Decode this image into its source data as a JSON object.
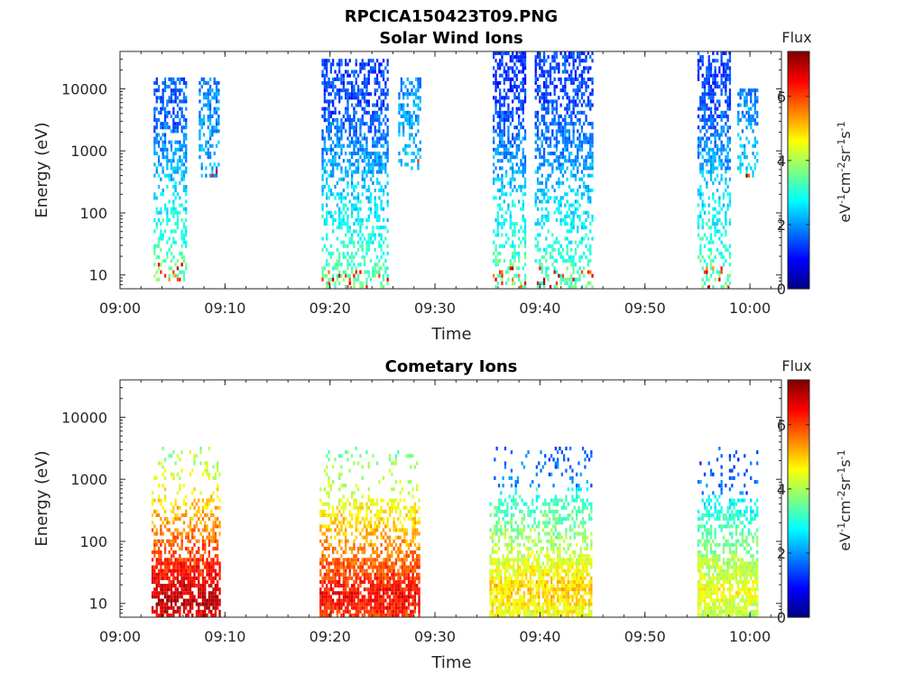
{
  "figure": {
    "title": "RPCICA150423T09.PNG"
  },
  "colorbar": {
    "label": "Flux",
    "unit_base": "eV",
    "unit_parts": [
      {
        "text": "eV",
        "sup": false
      },
      {
        "text": "-1",
        "sup": true
      },
      {
        "text": "cm",
        "sup": false
      },
      {
        "text": "-2",
        "sup": true
      },
      {
        "text": "sr",
        "sup": false
      },
      {
        "text": "-1",
        "sup": true
      },
      {
        "text": "s",
        "sup": false
      },
      {
        "text": "-1",
        "sup": true
      }
    ],
    "ticks": [
      "0",
      "2",
      "4",
      "6"
    ],
    "range": [
      0,
      7.4
    ],
    "colormap": "jet"
  },
  "chart_data": [
    {
      "type": "heatmap",
      "title": "Solar Wind Ions",
      "xlabel": "Time",
      "ylabel": "Energy (eV)",
      "y_scale": "log",
      "ylim": [
        6,
        40000
      ],
      "xlim": [
        "09:00",
        "10:03"
      ],
      "x_ticks": [
        "09:00",
        "09:10",
        "09:20",
        "09:30",
        "09:40",
        "09:50",
        "10:00"
      ],
      "y_ticks": [
        "10",
        "100",
        "1000",
        "10000"
      ],
      "bursts": [
        {
          "start": "09:03.2",
          "end": "09:06.3",
          "emin": 8,
          "emax": 14000,
          "peak_energy": 1600,
          "peak_flux": 1.6,
          "low_flux": 3.6
        },
        {
          "start": "09:07.5",
          "end": "09:09.5",
          "emin": 400,
          "emax": 14000,
          "peak_energy": 2500,
          "peak_flux": 1.9,
          "low_flux": 2.2
        },
        {
          "start": "09:19.2",
          "end": "09:25.5",
          "emin": 6,
          "emax": 30000,
          "peak_energy": 2000,
          "peak_flux": 1.4,
          "low_flux": 3.5
        },
        {
          "start": "09:26.5",
          "end": "09:28.6",
          "emin": 500,
          "emax": 14000,
          "peak_energy": 1500,
          "peak_flux": 2.0,
          "low_flux": 2.4
        },
        {
          "start": "09:35.5",
          "end": "09:38.6",
          "emin": 6,
          "emax": 35000,
          "peak_energy": 2500,
          "peak_flux": 1.3,
          "low_flux": 3.6
        },
        {
          "start": "09:39.5",
          "end": "09:45.0",
          "emin": 6,
          "emax": 35000,
          "peak_energy": 2000,
          "peak_flux": 1.4,
          "low_flux": 3.4
        },
        {
          "start": "09:55.0",
          "end": "09:58.2",
          "emin": 6,
          "emax": 35000,
          "peak_energy": 2000,
          "peak_flux": 1.4,
          "low_flux": 3.5
        },
        {
          "start": "09:58.8",
          "end": "10:00.8",
          "emin": 400,
          "emax": 10000,
          "peak_energy": 1500,
          "peak_flux": 1.9,
          "low_flux": 2.5
        }
      ]
    },
    {
      "type": "heatmap",
      "title": "Cometary Ions",
      "xlabel": "Time",
      "ylabel": "Energy (eV)",
      "y_scale": "log",
      "ylim": [
        6,
        40000
      ],
      "xlim": [
        "09:00",
        "10:03"
      ],
      "x_ticks": [
        "09:00",
        "09:10",
        "09:20",
        "09:30",
        "09:40",
        "09:50",
        "10:00"
      ],
      "y_ticks": [
        "10",
        "100",
        "1000",
        "10000"
      ],
      "bursts": [
        {
          "start": "09:03.0",
          "end": "09:09.5",
          "emin": 6,
          "emax": 3000,
          "peak_energy": 10,
          "peak_flux": 7.0,
          "low_flux": 2.8
        },
        {
          "start": "09:19.0",
          "end": "09:28.5",
          "emin": 6,
          "emax": 3000,
          "peak_energy": 12,
          "peak_flux": 6.5,
          "low_flux": 2.8
        },
        {
          "start": "09:35.2",
          "end": "09:45.0",
          "emin": 6,
          "emax": 3000,
          "peak_energy": 15,
          "peak_flux": 5.0,
          "low_flux": 2.8
        },
        {
          "start": "09:55.0",
          "end": "10:00.8",
          "emin": 6,
          "emax": 3000,
          "peak_energy": 15,
          "peak_flux": 4.6,
          "low_flux": 2.6
        }
      ]
    }
  ]
}
